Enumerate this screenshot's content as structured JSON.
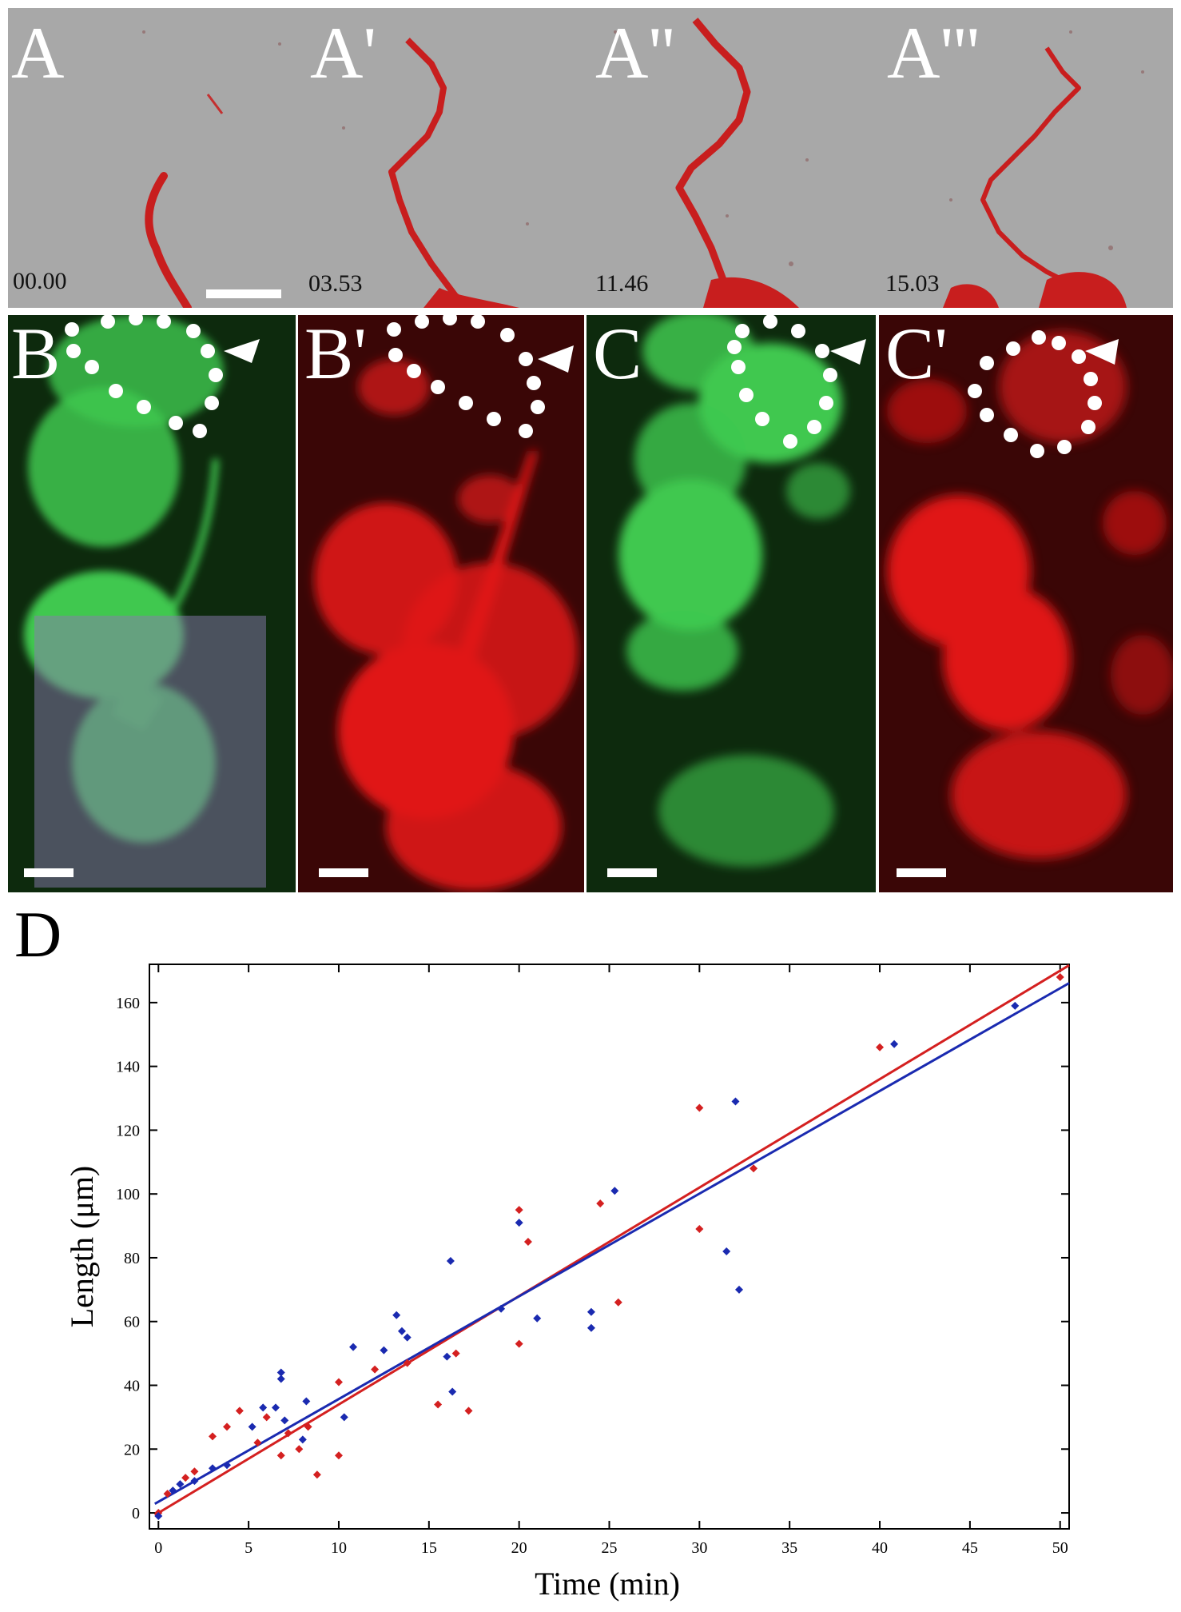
{
  "figure": {
    "panel_a": {
      "frames": [
        {
          "letter": "A",
          "time": "00.00"
        },
        {
          "letter": "A'",
          "time": "03.53"
        },
        {
          "letter": "A''",
          "time": "11.46"
        },
        {
          "letter": "A'''",
          "time": "15.03"
        }
      ],
      "background_color": "#a8a8a8",
      "stain_color": "#c81e1e"
    },
    "panel_bc": [
      {
        "letter": "B",
        "channel": "green"
      },
      {
        "letter": "B'",
        "channel": "red"
      },
      {
        "letter": "C",
        "channel": "green"
      },
      {
        "letter": "C'",
        "channel": "red"
      }
    ],
    "panel_d_letter": "D"
  },
  "chart_data": {
    "type": "scatter",
    "title": "",
    "xlabel": "Time (min)",
    "ylabel": "Length (μm)",
    "xlim": [
      -0.5,
      50.5
    ],
    "ylim": [
      -5,
      172
    ],
    "x_ticks": [
      0,
      5,
      10,
      15,
      20,
      25,
      30,
      35,
      40,
      45,
      50
    ],
    "y_ticks": [
      0,
      20,
      40,
      60,
      80,
      100,
      120,
      140,
      160
    ],
    "grid": false,
    "series": [
      {
        "color": "#d42020",
        "fit": {
          "slope": 3.4,
          "intercept": 0
        },
        "points": [
          [
            0,
            0
          ],
          [
            0.5,
            6
          ],
          [
            1.5,
            11
          ],
          [
            2,
            13
          ],
          [
            3,
            24
          ],
          [
            3.8,
            27
          ],
          [
            4.5,
            32
          ],
          [
            5.5,
            22
          ],
          [
            6,
            30
          ],
          [
            6.8,
            18
          ],
          [
            7.2,
            25
          ],
          [
            7.8,
            20
          ],
          [
            8.3,
            27
          ],
          [
            8.8,
            12
          ],
          [
            10,
            18
          ],
          [
            10,
            41
          ],
          [
            12,
            45
          ],
          [
            13.8,
            47
          ],
          [
            15.5,
            34
          ],
          [
            16.5,
            50
          ],
          [
            17.2,
            32
          ],
          [
            20,
            53
          ],
          [
            20,
            95
          ],
          [
            20.5,
            85
          ],
          [
            24.5,
            97
          ],
          [
            25.5,
            66
          ],
          [
            30,
            127
          ],
          [
            30,
            89
          ],
          [
            33,
            108
          ],
          [
            40,
            146
          ],
          [
            50,
            168
          ]
        ]
      },
      {
        "color": "#1a2ab0",
        "fit": {
          "slope": 3.22,
          "intercept": 3.5
        },
        "points": [
          [
            0,
            -1
          ],
          [
            0.8,
            7
          ],
          [
            1.2,
            9
          ],
          [
            2,
            10
          ],
          [
            3,
            14
          ],
          [
            3.8,
            15
          ],
          [
            5.2,
            27
          ],
          [
            5.8,
            33
          ],
          [
            6.5,
            33
          ],
          [
            6.8,
            42
          ],
          [
            6.8,
            44
          ],
          [
            7,
            29
          ],
          [
            8,
            23
          ],
          [
            8.2,
            35
          ],
          [
            10.3,
            30
          ],
          [
            10.8,
            52
          ],
          [
            12.5,
            51
          ],
          [
            13.2,
            62
          ],
          [
            13.5,
            57
          ],
          [
            13.8,
            55
          ],
          [
            16,
            49
          ],
          [
            16.2,
            79
          ],
          [
            16.3,
            38
          ],
          [
            19,
            64
          ],
          [
            20,
            91
          ],
          [
            21,
            61
          ],
          [
            24,
            63
          ],
          [
            24,
            58
          ],
          [
            25.3,
            101
          ],
          [
            31.5,
            82
          ],
          [
            32,
            129
          ],
          [
            32.2,
            70
          ],
          [
            40.8,
            147
          ],
          [
            47.5,
            159
          ]
        ]
      }
    ]
  }
}
